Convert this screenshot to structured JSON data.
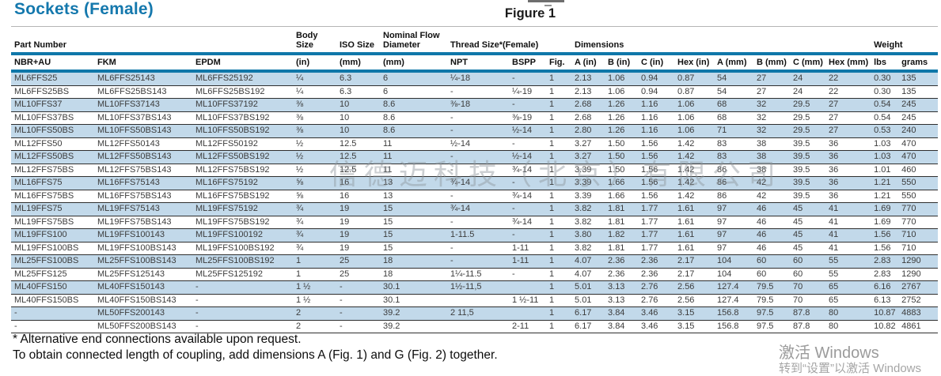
{
  "page": {
    "title": "Sockets (Female)",
    "figure_label": "Figure 1"
  },
  "colors": {
    "accent_blue": "#0f77a9",
    "stripe_blue": "#c2d9ea",
    "title_blue": "#1478ad"
  },
  "table": {
    "group_headers": {
      "part_number": "Part Number",
      "body_size": "Body Size",
      "iso_size": "ISO Size",
      "nominal_flow_diameter": "Nominal Flow Diameter",
      "thread_size": "Thread Size*(Female)",
      "fig_spacer": "",
      "dimensions": "Dimensions",
      "weight": "Weight"
    },
    "sub_headers": [
      "NBR+AU",
      "FKM",
      "EPDM",
      "(in)",
      "(mm)",
      "(mm)",
      "NPT",
      "BSPP",
      "Fig.",
      "A (in)",
      "B (in)",
      "C (in)",
      "Hex (in)",
      "A (mm)",
      "B (mm)",
      "C (mm)",
      "Hex (mm)",
      "lbs",
      "grams"
    ],
    "rows": [
      [
        "ML6FFS25",
        "ML6FFS25143",
        "ML6FFS25192",
        "¼",
        "6.3",
        "6",
        "¼-18",
        "-",
        "1",
        "2.13",
        "1.06",
        "0.94",
        "0.87",
        "54",
        "27",
        "24",
        "22",
        "0.30",
        "135"
      ],
      [
        "ML6FFS25BS",
        "ML6FFS25BS143",
        "ML6FFS25BS192",
        "¼",
        "6.3",
        "6",
        "-",
        "¼-19",
        "1",
        "2.13",
        "1.06",
        "0.94",
        "0.87",
        "54",
        "27",
        "24",
        "22",
        "0.30",
        "135"
      ],
      [
        "ML10FFS37",
        "ML10FFS37143",
        "ML10FFS37192",
        "⅜",
        "10",
        "8.6",
        "⅜-18",
        "-",
        "1",
        "2.68",
        "1.26",
        "1.16",
        "1.06",
        "68",
        "32",
        "29.5",
        "27",
        "0.54",
        "245"
      ],
      [
        "ML10FFS37BS",
        "ML10FFS37BS143",
        "ML10FFS37BS192",
        "⅜",
        "10",
        "8.6",
        "-",
        "⅜-19",
        "1",
        "2.68",
        "1.26",
        "1.16",
        "1.06",
        "68",
        "32",
        "29.5",
        "27",
        "0.54",
        "245"
      ],
      [
        "ML10FFS50BS",
        "ML10FFS50BS143",
        "ML10FFS50BS192",
        "⅜",
        "10",
        "8.6",
        "-",
        "½-14",
        "1",
        "2.80",
        "1.26",
        "1.16",
        "1.06",
        "71",
        "32",
        "29.5",
        "27",
        "0.53",
        "240"
      ],
      [
        "ML12FFS50",
        "ML12FFS50143",
        "ML12FFS50192",
        "½",
        "12.5",
        "11",
        "½-14",
        "-",
        "1",
        "3.27",
        "1.50",
        "1.56",
        "1.42",
        "83",
        "38",
        "39.5",
        "36",
        "1.03",
        "470"
      ],
      [
        "ML12FFS50BS",
        "ML12FFS50BS143",
        "ML12FFS50BS192",
        "½",
        "12.5",
        "11",
        "-",
        "½-14",
        "1",
        "3.27",
        "1.50",
        "1.56",
        "1.42",
        "83",
        "38",
        "39.5",
        "36",
        "1.03",
        "470"
      ],
      [
        "ML12FFS75BS",
        "ML12FFS75BS143",
        "ML12FFS75BS192",
        "½",
        "12.5",
        "11",
        "-",
        "¾-14",
        "1",
        "3.39",
        "1.50",
        "1.56",
        "1.42",
        "86",
        "38",
        "39.5",
        "36",
        "1.01",
        "460"
      ],
      [
        "ML16FFS75",
        "ML16FFS75143",
        "ML16FFS75192",
        "⅝",
        "16",
        "13",
        "¾-14",
        "-",
        "1",
        "3.39",
        "1.66",
        "1.56",
        "1.42",
        "86",
        "42",
        "39.5",
        "36",
        "1.21",
        "550"
      ],
      [
        "ML16FFS75BS",
        "ML16FFS75BS143",
        "ML16FFS75BS192",
        "⅝",
        "16",
        "13",
        "-",
        "¾-14",
        "1",
        "3.39",
        "1.66",
        "1.56",
        "1.42",
        "86",
        "42",
        "39.5",
        "36",
        "1.21",
        "550"
      ],
      [
        "ML19FFS75",
        "ML19FFS75143",
        "ML19FFS75192",
        "¾",
        "19",
        "15",
        "¾-14",
        "-",
        "1",
        "3.82",
        "1.81",
        "1.77",
        "1.61",
        "97",
        "46",
        "45",
        "41",
        "1.69",
        "770"
      ],
      [
        "ML19FFS75BS",
        "ML19FFS75BS143",
        "ML19FFS75BS192",
        "¾",
        "19",
        "15",
        "-",
        "¾-14",
        "1",
        "3.82",
        "1.81",
        "1.77",
        "1.61",
        "97",
        "46",
        "45",
        "41",
        "1.69",
        "770"
      ],
      [
        "ML19FFS100",
        "ML19FFS100143",
        "ML19FFS100192",
        "¾",
        "19",
        "15",
        "1-11.5",
        "-",
        "1",
        "3.80",
        "1.82",
        "1.77",
        "1.61",
        "97",
        "46",
        "45",
        "41",
        "1.56",
        "710"
      ],
      [
        "ML19FFS100BS",
        "ML19FFS100BS143",
        "ML19FFS100BS192",
        "¾",
        "19",
        "15",
        "-",
        "1-11",
        "1",
        "3.82",
        "1.81",
        "1.77",
        "1.61",
        "97",
        "46",
        "45",
        "41",
        "1.56",
        "710"
      ],
      [
        "ML25FFS100BS",
        "ML25FFS100BS143",
        "ML25FFS100BS192",
        "1",
        "25",
        "18",
        "-",
        "1-11",
        "1",
        "4.07",
        "2.36",
        "2.36",
        "2.17",
        "104",
        "60",
        "60",
        "55",
        "2.83",
        "1290"
      ],
      [
        "ML25FFS125",
        "ML25FFS125143",
        "ML25FFS125192",
        "1",
        "25",
        "18",
        "1¼-11.5",
        "-",
        "1",
        "4.07",
        "2.36",
        "2.36",
        "2.17",
        "104",
        "60",
        "60",
        "55",
        "2.83",
        "1290"
      ],
      [
        "ML40FFS150",
        "ML40FFS150143",
        "-",
        "1 ½",
        "-",
        "30.1",
        "1½-11,5",
        "",
        "1",
        "5.01",
        "3.13",
        "2.76",
        "2.56",
        "127.4",
        "79.5",
        "70",
        "65",
        "6.16",
        "2767"
      ],
      [
        "ML40FFS150BS",
        "ML40FFS150BS143",
        "-",
        "1 ½",
        "-",
        "30.1",
        "",
        "1 ½-11",
        "1",
        "5.01",
        "3.13",
        "2.76",
        "2.56",
        "127.4",
        "79.5",
        "70",
        "65",
        "6.13",
        "2752"
      ],
      [
        "-",
        "ML50FFS200143",
        "-",
        "2",
        "-",
        "39.2",
        "2 11,5",
        "",
        "1",
        "6.17",
        "3.84",
        "3.46",
        "3.15",
        "156.8",
        "97.5",
        "87.8",
        "80",
        "10.87",
        "4883"
      ],
      [
        "-",
        "ML50FFS200BS143",
        "-",
        "2",
        "-",
        "39.2",
        "",
        "2-11",
        "1",
        "6.17",
        "3.84",
        "3.46",
        "3.15",
        "156.8",
        "97.5",
        "87.8",
        "80",
        "10.82",
        "4861"
      ]
    ]
  },
  "footnotes": {
    "line1": "* Alternative end connections available upon request.",
    "line2": "To obtain connected length of coupling, add dimensions A (Fig. 1) and G (Fig. 2) together."
  },
  "watermarks": {
    "company": "信德迈科技（北京）有限公司",
    "activate_title": "激活 Windows",
    "activate_sub": "转到“设置”以激活 Windows"
  }
}
